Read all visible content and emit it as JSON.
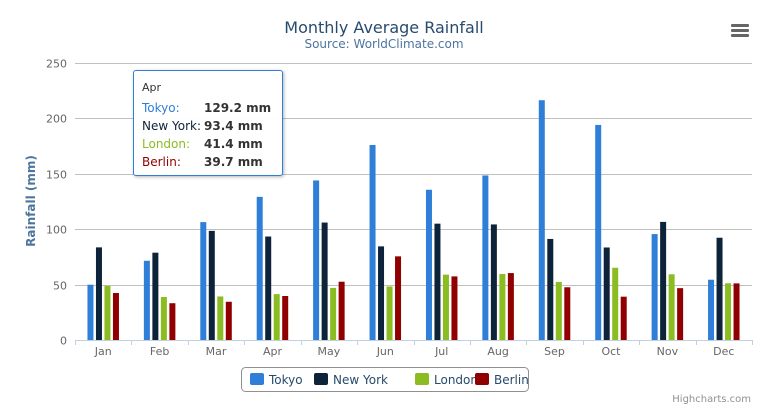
{
  "chart_data": {
    "type": "bar",
    "title": "Monthly Average Rainfall",
    "subtitle": "Source: WorldClimate.com",
    "xlabel": "",
    "ylabel": "Rainfall (mm)",
    "ylim": [
      0,
      250
    ],
    "yticks": [
      "0",
      "50",
      "100",
      "150",
      "200",
      "250"
    ],
    "grid": true,
    "legend_position": "bottom",
    "categories": [
      "Jan",
      "Feb",
      "Mar",
      "Apr",
      "May",
      "Jun",
      "Jul",
      "Aug",
      "Sep",
      "Oct",
      "Nov",
      "Dec"
    ],
    "series": [
      {
        "name": "Tokyo",
        "color": "#2f7ed8",
        "values": [
          49.9,
          71.5,
          106.4,
          129.2,
          144.0,
          176.0,
          135.6,
          148.5,
          216.4,
          194.1,
          95.6,
          54.4
        ]
      },
      {
        "name": "New York",
        "color": "#0d233a",
        "values": [
          83.6,
          78.8,
          98.5,
          93.4,
          106.0,
          84.5,
          105.0,
          104.3,
          91.2,
          83.5,
          106.6,
          92.3
        ]
      },
      {
        "name": "London",
        "color": "#8bbc21",
        "values": [
          48.9,
          38.8,
          39.3,
          41.4,
          47.0,
          48.3,
          59.0,
          59.6,
          52.4,
          65.2,
          59.3,
          51.2
        ]
      },
      {
        "name": "Berlin",
        "color": "#910000",
        "values": [
          42.4,
          33.2,
          34.5,
          39.7,
          52.6,
          75.5,
          57.4,
          60.4,
          47.6,
          39.1,
          46.8,
          51.1
        ]
      }
    ],
    "tooltip": {
      "header": "Apr",
      "rows": [
        {
          "name": "Tokyo:",
          "value": "129.2 mm"
        },
        {
          "name": "New York:",
          "value": "93.4 mm"
        },
        {
          "name": "London:",
          "value": "41.4 mm"
        },
        {
          "name": "Berlin:",
          "value": "39.7 mm"
        }
      ]
    },
    "credits": "Highcharts.com"
  },
  "menu_icon": "hamburger-menu-icon"
}
